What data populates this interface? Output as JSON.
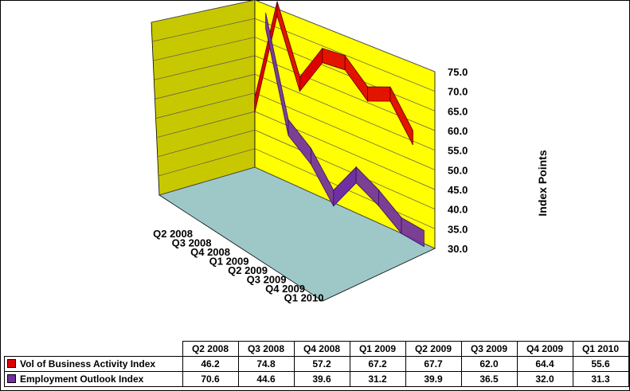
{
  "chart_data": {
    "type": "line",
    "categories": [
      "Q2 2008",
      "Q3 2008",
      "Q4 2008",
      "Q1 2009",
      "Q2 2009",
      "Q3 2009",
      "Q4 2009",
      "Q1 2010"
    ],
    "series": [
      {
        "name": "Vol of Business Activity Index",
        "values": [
          46.2,
          74.8,
          57.2,
          67.2,
          67.7,
          62.0,
          64.4,
          55.6
        ],
        "color": "#e00000"
      },
      {
        "name": "Employment Outlook Index",
        "values": [
          70.6,
          44.6,
          39.6,
          31.2,
          39.9,
          36.5,
          32.0,
          31.3
        ],
        "color": "#7030a0"
      }
    ],
    "table_values": [
      [
        "46.2",
        "74.8",
        "57.2",
        "67.2",
        "67.7",
        "62.0",
        "64.4",
        "55.6"
      ],
      [
        "70.6",
        "44.6",
        "39.6",
        "31.2",
        "39.9",
        "36.5",
        "32.0",
        "31.3"
      ]
    ],
    "yticks": [
      "30.0",
      "35.0",
      "40.0",
      "45.0",
      "50.0",
      "55.0",
      "60.0",
      "65.0",
      "70.0",
      "75.0"
    ],
    "ylim": [
      30,
      75
    ],
    "ylabel": "Index Points",
    "xlabel": "",
    "title": "",
    "grid": true,
    "legend": "data-table-below",
    "colors": {
      "back_wall": "#ffff00",
      "side_wall": "#c8c800",
      "floor": "#9ec8c8",
      "grid": "#555555"
    }
  }
}
